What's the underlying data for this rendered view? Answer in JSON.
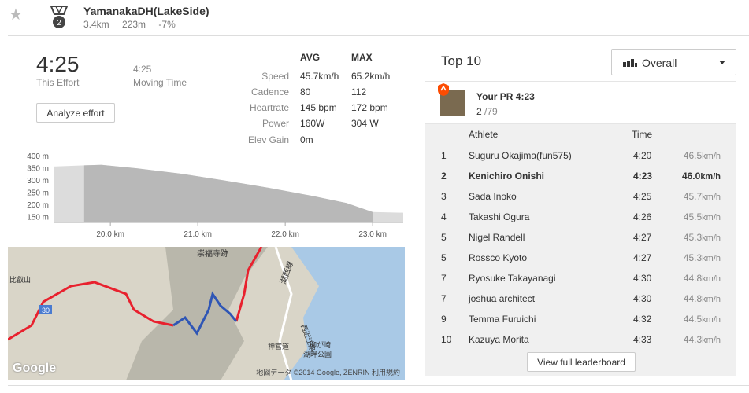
{
  "header": {
    "segment_name": "YamanakaDH(LakeSide)",
    "distance": "3.4km",
    "elevation": "223m",
    "grade": "-7%",
    "medal_rank": "2",
    "star_icon": "star-icon",
    "medal_icon": "medal-icon"
  },
  "effort": {
    "time": "4:25",
    "time_label": "This Effort",
    "moving_time": "4:25",
    "moving_label": "Moving Time",
    "analyze_label": "Analyze effort"
  },
  "stats": {
    "avg_header": "AVG",
    "max_header": "MAX",
    "rows": [
      {
        "label": "Speed",
        "avg": "45.7km/h",
        "max": "65.2km/h"
      },
      {
        "label": "Cadence",
        "avg": "80",
        "max": "112"
      },
      {
        "label": "Heartrate",
        "avg": "145 bpm",
        "max": "172 bpm"
      },
      {
        "label": "Power",
        "avg": "160W",
        "max": "304 W"
      },
      {
        "label": "Elev Gain",
        "avg": "0m",
        "max": ""
      }
    ]
  },
  "chart_data": {
    "type": "area",
    "title": "",
    "xlabel": "",
    "ylabel": "",
    "y_ticks": [
      "400 m",
      "350 m",
      "300 m",
      "250 m",
      "200 m",
      "150 m"
    ],
    "x_ticks": [
      "20.0 km",
      "21.0 km",
      "22.0 km",
      "23.0 km"
    ],
    "ylim": [
      125,
      400
    ],
    "xlim": [
      19.35,
      23.35
    ],
    "x": [
      19.35,
      19.7,
      19.9,
      20.3,
      20.8,
      21.3,
      21.8,
      22.3,
      22.7,
      23.0,
      23.35
    ],
    "y": [
      355,
      360,
      362,
      348,
      326,
      298,
      268,
      235,
      205,
      168,
      165
    ],
    "highlight_range": [
      19.7,
      23.0
    ],
    "grid": false
  },
  "map": {
    "labels": [
      "崇福寺跡",
      "湖西線",
      "西近江路",
      "神宮道",
      "柳が崎",
      "湖畔公園",
      "比叡山",
      "30"
    ],
    "copyright": "地図データ ©2014 Google, ZENRIN",
    "terms": "利用規約",
    "google_logo": "Google"
  },
  "leaderboard": {
    "title": "Top 10",
    "filter_label": "Overall",
    "pr_title": "Your PR 4:23",
    "pr_rank": "2",
    "pr_total": "/79",
    "col_athlete": "Athlete",
    "col_time": "Time",
    "rows": [
      {
        "rank": "1",
        "name": "Suguru Okajima(fun575)",
        "time": "4:20",
        "speed": "46.5",
        "unit": "km/h"
      },
      {
        "rank": "2",
        "name": "Kenichiro Onishi",
        "time": "4:23",
        "speed": "46.0",
        "unit": "km/h"
      },
      {
        "rank": "3",
        "name": "Sada Inoko",
        "time": "4:25",
        "speed": "45.7",
        "unit": "km/h"
      },
      {
        "rank": "4",
        "name": "Takashi Ogura",
        "time": "4:26",
        "speed": "45.5",
        "unit": "km/h"
      },
      {
        "rank": "5",
        "name": "Nigel Randell",
        "time": "4:27",
        "speed": "45.3",
        "unit": "km/h"
      },
      {
        "rank": "5",
        "name": "Rossco Kyoto",
        "time": "4:27",
        "speed": "45.3",
        "unit": "km/h"
      },
      {
        "rank": "7",
        "name": "Ryosuke Takayanagi",
        "time": "4:30",
        "speed": "44.8",
        "unit": "km/h"
      },
      {
        "rank": "7",
        "name": "joshua architect",
        "time": "4:30",
        "speed": "44.8",
        "unit": "km/h"
      },
      {
        "rank": "9",
        "name": "Temma Furuichi",
        "time": "4:32",
        "speed": "44.5",
        "unit": "km/h"
      },
      {
        "rank": "10",
        "name": "Kazuya Morita",
        "time": "4:33",
        "speed": "44.3",
        "unit": "km/h"
      }
    ],
    "full_label": "View full leaderboard"
  },
  "colors": {
    "route_red": "#e8212e",
    "route_blue": "#2f56b5",
    "strava_orange": "#fc4c02"
  }
}
